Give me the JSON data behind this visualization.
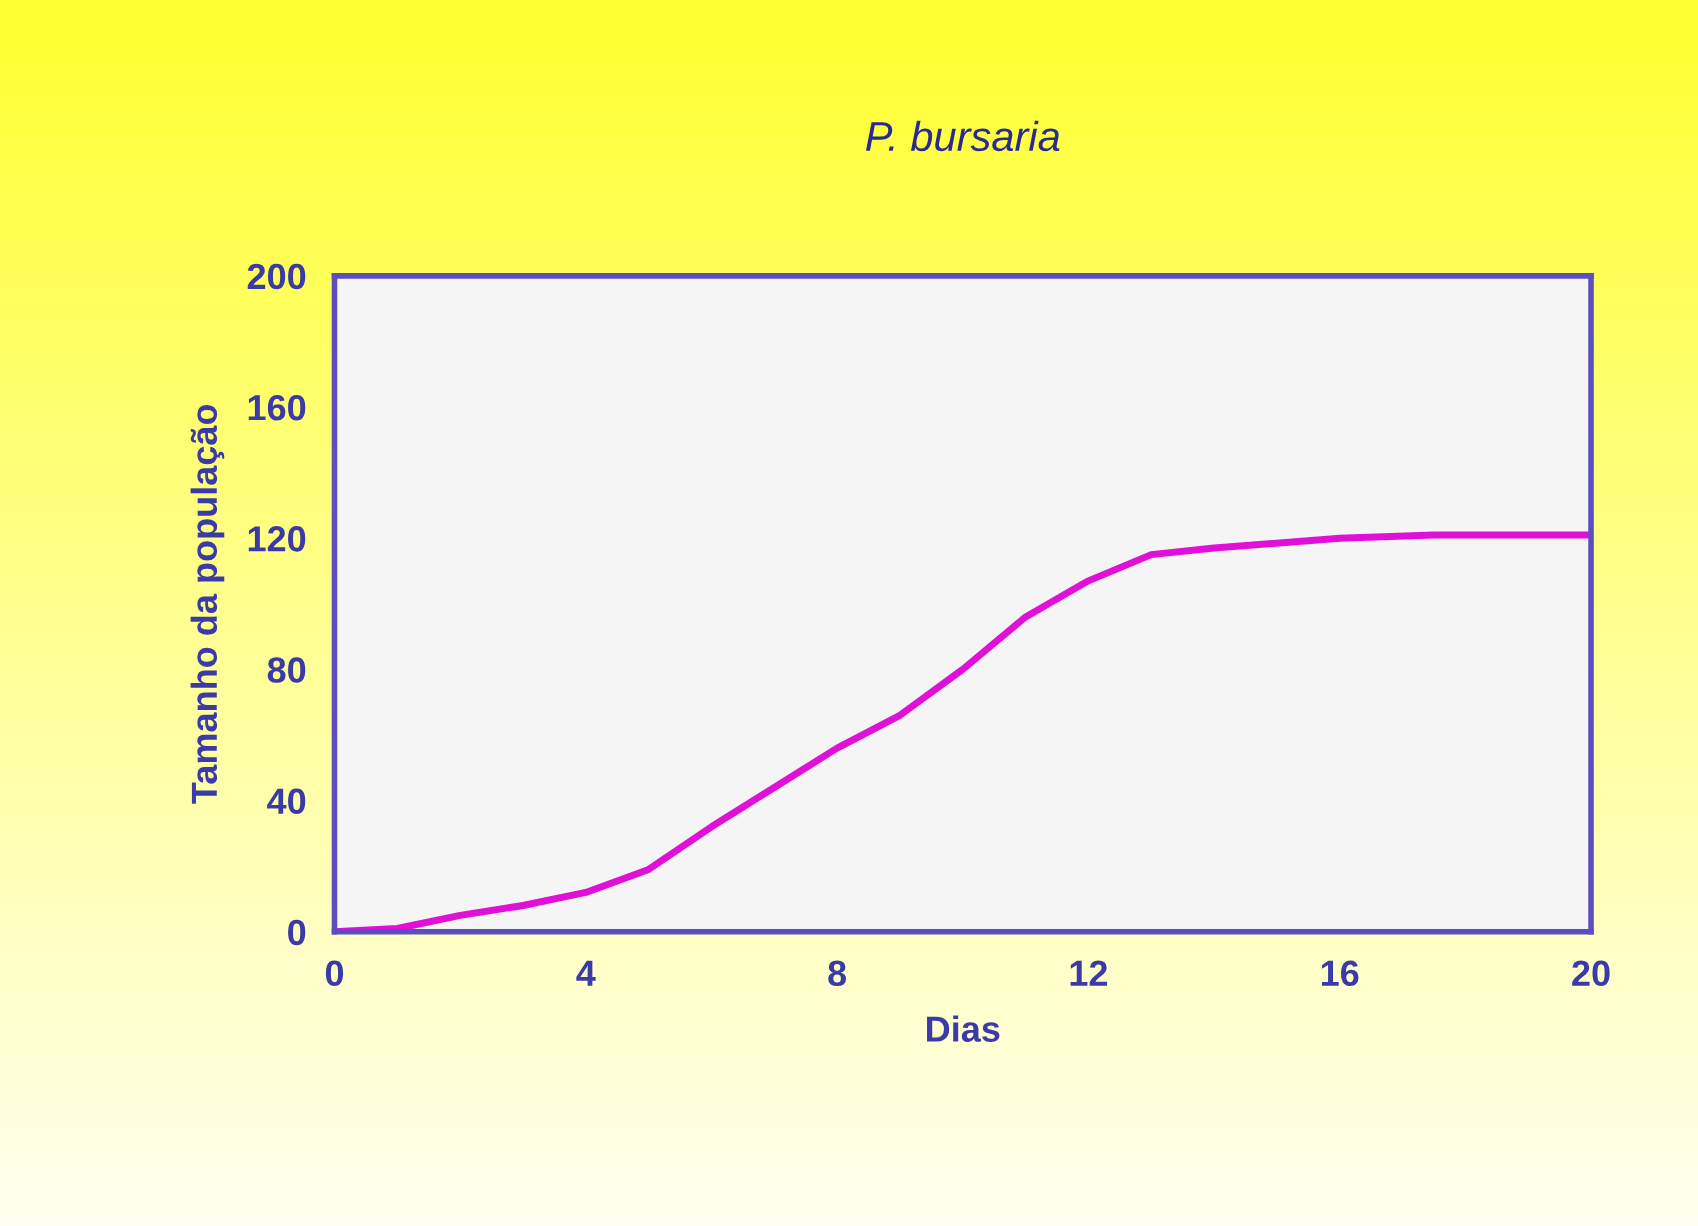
{
  "chart_data": {
    "type": "line",
    "title": "P. bursaria",
    "xlabel": "Dias",
    "ylabel": "Tamanho da população",
    "x": [
      0,
      1,
      2,
      3,
      4,
      5,
      6,
      7,
      8,
      9,
      10,
      11,
      12,
      13,
      14,
      16,
      17.5,
      20
    ],
    "series": [
      {
        "color": "#e010d8",
        "values": [
          0,
          1,
          5,
          8,
          12,
          19,
          32,
          44,
          56,
          66,
          80,
          96,
          107,
          115,
          117,
          120,
          121,
          121
        ]
      }
    ],
    "xlim": [
      0,
      20
    ],
    "xticks": [
      0,
      4,
      8,
      12,
      16,
      20
    ],
    "ylim": [
      0,
      200
    ],
    "yticks": [
      0,
      40,
      80,
      120,
      160,
      200
    ],
    "grid": false,
    "marker": "none",
    "line_style": "solid"
  }
}
